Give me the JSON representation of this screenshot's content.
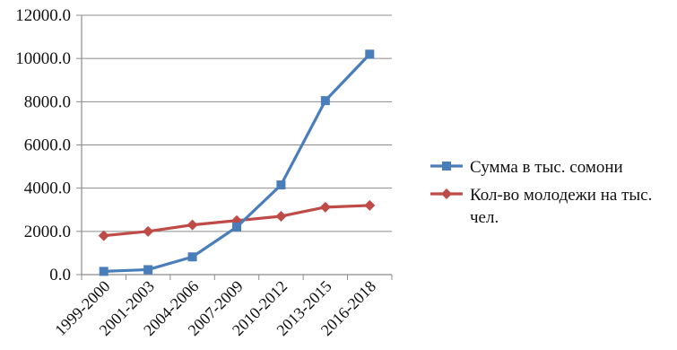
{
  "chart_data": {
    "type": "line",
    "title": "",
    "xlabel": "",
    "ylabel": "",
    "categories": [
      "1999-2000",
      "2001-2003",
      "2004-2006",
      "2007-2009",
      "2010-2012",
      "2013-2015",
      "2016-2018"
    ],
    "y_ticks": [
      "0.0",
      "2000.0",
      "4000.0",
      "6000.0",
      "8000.0",
      "10000.0",
      "12000.0"
    ],
    "ylim": [
      0,
      12000
    ],
    "grid": "horizontal",
    "legend_position": "right",
    "series": [
      {
        "name": "Сумма в тыс. сомони",
        "legend_lines": [
          "Сумма в тыс. сомони"
        ],
        "color": "#4a7ebb",
        "marker": "square",
        "values": [
          150,
          230,
          820,
          2200,
          4150,
          8050,
          10200
        ]
      },
      {
        "name": "Кол-во молодежи на тыс. чел.",
        "legend_lines": [
          "Кол-во молодежи на тыс.",
          "чел."
        ],
        "color": "#be4b48",
        "marker": "diamond",
        "values": [
          1800,
          2000,
          2300,
          2500,
          2700,
          3120,
          3200
        ]
      }
    ]
  }
}
